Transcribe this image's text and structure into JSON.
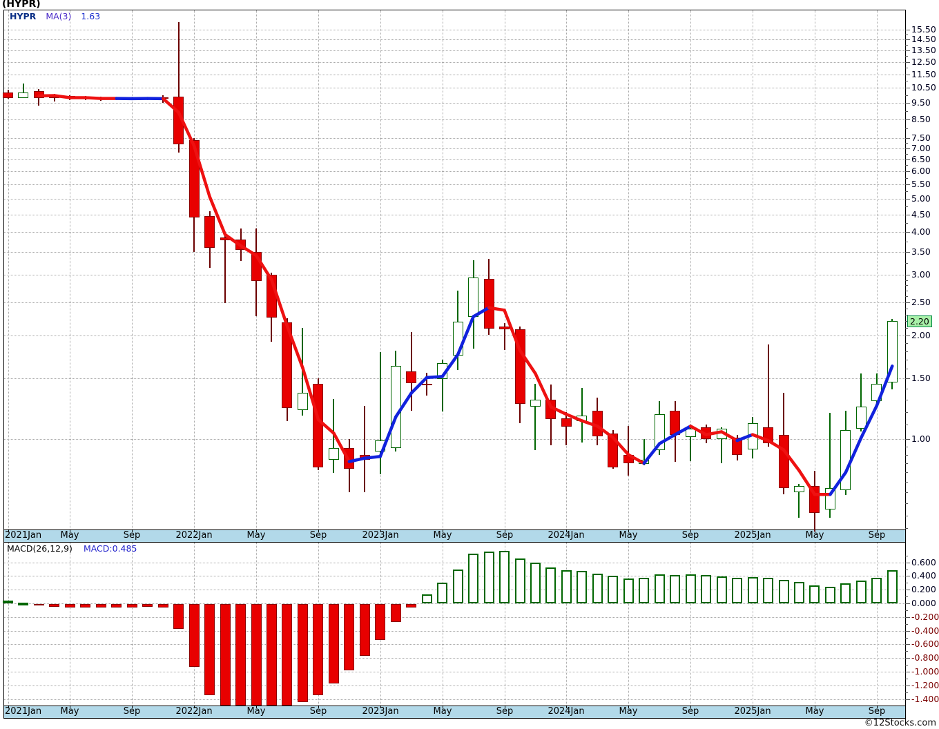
{
  "title": "(HYPR)",
  "price_pane": {
    "legend": {
      "symbol": "HYPR",
      "ma_label": "MA(3)",
      "ma_value": "1.63"
    },
    "last_price_label": "2.20"
  },
  "macd_pane": {
    "legend": {
      "name": "MACD(26,12,9)",
      "value_label": "MACD:0.485"
    }
  },
  "x_axis_labels": [
    "2021Jan",
    "May",
    "Sep",
    "2022Jan",
    "May",
    "Sep",
    "2023Jan",
    "May",
    "Sep",
    "2024Jan",
    "May",
    "Sep",
    "2025Jan",
    "May",
    "Sep"
  ],
  "footer": {
    "credit": "©12Stocks.com"
  },
  "colors": {
    "up": "#006600",
    "up_fill": "#ffffff",
    "down_fill": "#e80000",
    "down_border": "#8b0000",
    "down_wick": "#6b0000",
    "ma_up": "#1122dd",
    "ma_down": "#ee1111",
    "axis_strip": "#b2d9e9",
    "last_price_bg": "#a8f0a8",
    "neg_label": "#7a0000"
  },
  "chart_data": [
    {
      "type": "candlestick",
      "title": "HYPR monthly price",
      "scale": "log",
      "ylim": [
        0.52,
        16.9
      ],
      "y_ticks": [
        15.5,
        14.5,
        13.5,
        12.5,
        11.5,
        10.5,
        9.5,
        8.5,
        7.5,
        7.0,
        6.5,
        6.0,
        5.5,
        5.0,
        4.5,
        4.0,
        3.5,
        3.0,
        2.5,
        2.0,
        1.5,
        1.0
      ],
      "last_price": 2.2,
      "months": [
        "2021-01",
        "2021-02",
        "2021-03",
        "2021-04",
        "2021-05",
        "2021-06",
        "2021-07",
        "2021-08",
        "2021-09",
        "2021-10",
        "2021-11",
        "2021-12",
        "2022-01",
        "2022-02",
        "2022-03",
        "2022-04",
        "2022-05",
        "2022-06",
        "2022-07",
        "2022-08",
        "2022-09",
        "2022-10",
        "2022-11",
        "2022-12",
        "2023-01",
        "2023-02",
        "2023-03",
        "2023-04",
        "2023-05",
        "2023-06",
        "2023-07",
        "2023-08",
        "2023-09",
        "2023-10",
        "2023-11",
        "2023-12",
        "2024-01",
        "2024-02",
        "2024-03",
        "2024-04",
        "2024-05",
        "2024-06",
        "2024-07",
        "2024-08",
        "2024-09",
        "2024-10",
        "2024-11",
        "2024-12",
        "2025-01",
        "2025-02",
        "2025-03",
        "2025-04",
        "2025-05",
        "2025-06",
        "2025-07",
        "2025-08",
        "2025-09",
        "2025-10"
      ],
      "ohlc": [
        [
          10.2,
          10.35,
          9.75,
          9.85
        ],
        [
          9.85,
          10.8,
          9.78,
          10.2
        ],
        [
          10.25,
          10.4,
          9.3,
          9.8
        ],
        [
          9.9,
          10.1,
          9.6,
          9.88
        ],
        [
          9.95,
          10.0,
          9.7,
          9.8
        ],
        [
          9.85,
          9.95,
          9.7,
          9.8
        ],
        [
          9.85,
          9.9,
          9.65,
          9.75
        ],
        [
          9.8,
          9.85,
          9.7,
          9.78
        ],
        [
          9.8,
          9.85,
          9.72,
          9.78
        ],
        [
          9.8,
          9.84,
          9.74,
          9.78
        ],
        [
          9.85,
          10.0,
          9.5,
          9.75
        ],
        [
          9.9,
          16.3,
          6.8,
          7.2
        ],
        [
          7.4,
          7.5,
          3.5,
          4.4
        ],
        [
          4.45,
          4.6,
          3.15,
          3.6
        ],
        [
          3.85,
          4.0,
          2.48,
          3.78
        ],
        [
          3.8,
          4.1,
          3.3,
          3.55
        ],
        [
          3.5,
          4.1,
          2.28,
          2.88
        ],
        [
          3.0,
          3.05,
          1.92,
          2.25
        ],
        [
          2.18,
          2.25,
          1.13,
          1.23
        ],
        [
          1.21,
          2.1,
          1.17,
          1.36
        ],
        [
          1.45,
          1.5,
          0.81,
          0.83
        ],
        [
          0.87,
          1.31,
          0.8,
          0.94
        ],
        [
          0.94,
          1.0,
          0.7,
          0.82
        ],
        [
          0.9,
          1.25,
          0.7,
          0.87
        ],
        [
          0.92,
          1.79,
          0.79,
          0.99
        ],
        [
          0.94,
          1.81,
          0.92,
          1.63
        ],
        [
          1.57,
          2.05,
          1.21,
          1.45
        ],
        [
          1.45,
          1.56,
          1.34,
          1.44
        ],
        [
          1.49,
          1.7,
          1.2,
          1.66
        ],
        [
          1.75,
          2.7,
          1.59,
          2.19
        ],
        [
          2.27,
          3.31,
          1.83,
          2.95
        ],
        [
          2.92,
          3.34,
          2.01,
          2.09
        ],
        [
          2.12,
          2.17,
          1.81,
          2.08
        ],
        [
          2.09,
          2.12,
          1.11,
          1.27
        ],
        [
          1.24,
          1.45,
          0.93,
          1.3
        ],
        [
          1.3,
          1.44,
          0.96,
          1.14
        ],
        [
          1.15,
          1.2,
          0.96,
          1.09
        ],
        [
          1.13,
          1.41,
          0.98,
          1.17
        ],
        [
          1.21,
          1.32,
          0.96,
          1.02
        ],
        [
          1.04,
          1.06,
          0.82,
          0.83
        ],
        [
          0.9,
          1.09,
          0.78,
          0.85
        ],
        [
          0.845,
          1.0,
          0.84,
          0.87
        ],
        [
          0.93,
          1.29,
          0.9,
          1.18
        ],
        [
          1.21,
          1.29,
          0.86,
          1.03
        ],
        [
          1.01,
          1.1,
          0.86,
          1.07
        ],
        [
          1.08,
          1.1,
          0.97,
          1.0
        ],
        [
          1.0,
          1.08,
          0.85,
          1.07
        ],
        [
          1.01,
          1.03,
          0.87,
          0.9
        ],
        [
          0.93,
          1.16,
          0.88,
          1.11
        ],
        [
          1.08,
          1.88,
          0.95,
          0.97
        ],
        [
          1.03,
          1.36,
          0.69,
          0.72
        ],
        [
          0.7,
          0.74,
          0.59,
          0.73
        ],
        [
          0.73,
          0.81,
          0.54,
          0.61
        ],
        [
          0.625,
          1.19,
          0.59,
          0.72
        ],
        [
          0.71,
          1.21,
          0.69,
          1.06
        ],
        [
          1.07,
          1.55,
          1.05,
          1.24
        ],
        [
          1.29,
          1.55,
          1.25,
          1.45
        ],
        [
          1.46,
          2.24,
          1.4,
          2.2
        ]
      ],
      "ma3": {
        "period": 3,
        "last": 1.63,
        "start_index": 2,
        "values": [
          9.95,
          9.97,
          9.83,
          9.83,
          9.78,
          9.78,
          9.77,
          9.78,
          9.77,
          8.91,
          7.12,
          5.07,
          3.93,
          3.65,
          3.42,
          2.9,
          2.13,
          1.61,
          1.14,
          1.04,
          0.86,
          0.88,
          0.89,
          1.16,
          1.36,
          1.51,
          1.52,
          1.76,
          2.27,
          2.41,
          2.37,
          1.81,
          1.55,
          1.24,
          1.18,
          1.13,
          1.09,
          1.01,
          0.9,
          0.85,
          0.97,
          1.03,
          1.09,
          1.03,
          1.05,
          0.99,
          1.03,
          0.99,
          0.93,
          0.81,
          0.69,
          0.69,
          0.8,
          1.01,
          1.25,
          1.63
        ],
        "segment_colors": [
          "down",
          "down",
          "down",
          "down",
          "down",
          "up",
          "up",
          "up",
          "down",
          "down",
          "down",
          "down",
          "down",
          "down",
          "down",
          "down",
          "down",
          "down",
          "down",
          "down",
          "up",
          "up",
          "up",
          "up",
          "up",
          "up",
          "up",
          "up",
          "up",
          "down",
          "down",
          "down",
          "down",
          "down",
          "down",
          "down",
          "down",
          "down",
          "down",
          "up",
          "up",
          "up",
          "down",
          "down",
          "down",
          "up",
          "down",
          "down",
          "down",
          "down",
          "down",
          "up",
          "up",
          "up",
          "up"
        ]
      }
    },
    {
      "type": "bar",
      "title": "MACD(26,12,9)",
      "last": 0.485,
      "y_ticks": [
        0.6,
        0.4,
        0.2,
        0.0,
        -0.2,
        -0.4,
        -0.6,
        -0.8,
        -1.0,
        -1.2,
        -1.4
      ],
      "values": [
        0.04,
        0.01,
        -0.02,
        -0.04,
        -0.05,
        -0.05,
        -0.05,
        -0.05,
        -0.05,
        -0.04,
        -0.05,
        -0.36,
        -0.92,
        -1.33,
        -1.5,
        -1.54,
        -1.55,
        -1.53,
        -1.55,
        -1.43,
        -1.33,
        -1.16,
        -0.97,
        -0.76,
        -0.53,
        -0.26,
        -0.05,
        0.13,
        0.3,
        0.49,
        0.73,
        0.76,
        0.77,
        0.66,
        0.6,
        0.53,
        0.48,
        0.47,
        0.43,
        0.4,
        0.36,
        0.37,
        0.42,
        0.41,
        0.42,
        0.41,
        0.39,
        0.37,
        0.38,
        0.37,
        0.34,
        0.31,
        0.26,
        0.24,
        0.29,
        0.33,
        0.37,
        0.485
      ]
    }
  ]
}
